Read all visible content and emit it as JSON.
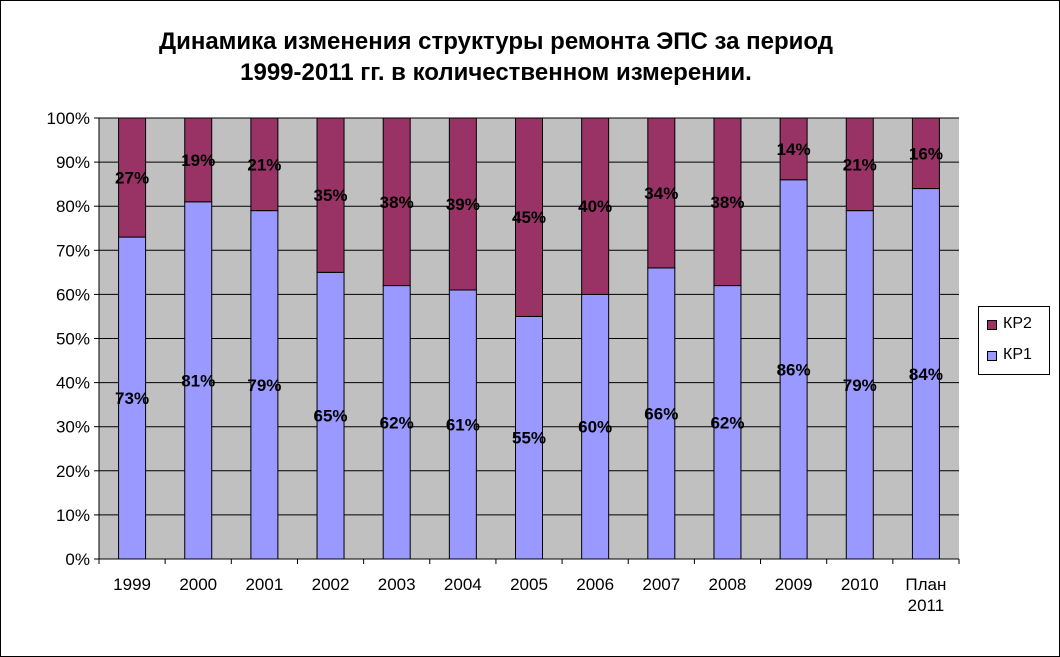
{
  "chart_data": {
    "type": "bar",
    "stacked": true,
    "title_lines": [
      "Динамика изменения структуры ремонта ЭПС за период",
      "1999-2011 гг. в количественном измерении."
    ],
    "categories": [
      [
        "1999"
      ],
      [
        "2000"
      ],
      [
        "2001"
      ],
      [
        "2002"
      ],
      [
        "2003"
      ],
      [
        "2004"
      ],
      [
        "2005"
      ],
      [
        "2006"
      ],
      [
        "2007"
      ],
      [
        "2008"
      ],
      [
        "2009"
      ],
      [
        "2010"
      ],
      [
        "План",
        "2011"
      ]
    ],
    "series": [
      {
        "name": "КР1",
        "color": "#9999ff",
        "values": [
          73,
          81,
          79,
          65,
          62,
          61,
          55,
          60,
          66,
          62,
          86,
          79,
          84
        ],
        "labels": [
          "73%",
          "81%",
          "79%",
          "65%",
          "62%",
          "61%",
          "55%",
          "60%",
          "66%",
          "62%",
          "86%",
          "79%",
          "84%"
        ]
      },
      {
        "name": "КР2",
        "color": "#993366",
        "values": [
          27,
          19,
          21,
          35,
          38,
          39,
          45,
          40,
          34,
          38,
          14,
          21,
          16
        ],
        "labels": [
          "27%",
          "19%",
          "21%",
          "35%",
          "38%",
          "39%",
          "45%",
          "40%",
          "34%",
          "38%",
          "14%",
          "21%",
          "16%"
        ]
      }
    ],
    "y_ticks": [
      "0%",
      "10%",
      "20%",
      "30%",
      "40%",
      "50%",
      "60%",
      "70%",
      "80%",
      "90%",
      "100%"
    ],
    "ylim": [
      0,
      100
    ],
    "grid": true,
    "plot_background": "#c0c0c0",
    "legend_position": "right",
    "legend_order": [
      "КР2",
      "КР1"
    ]
  }
}
